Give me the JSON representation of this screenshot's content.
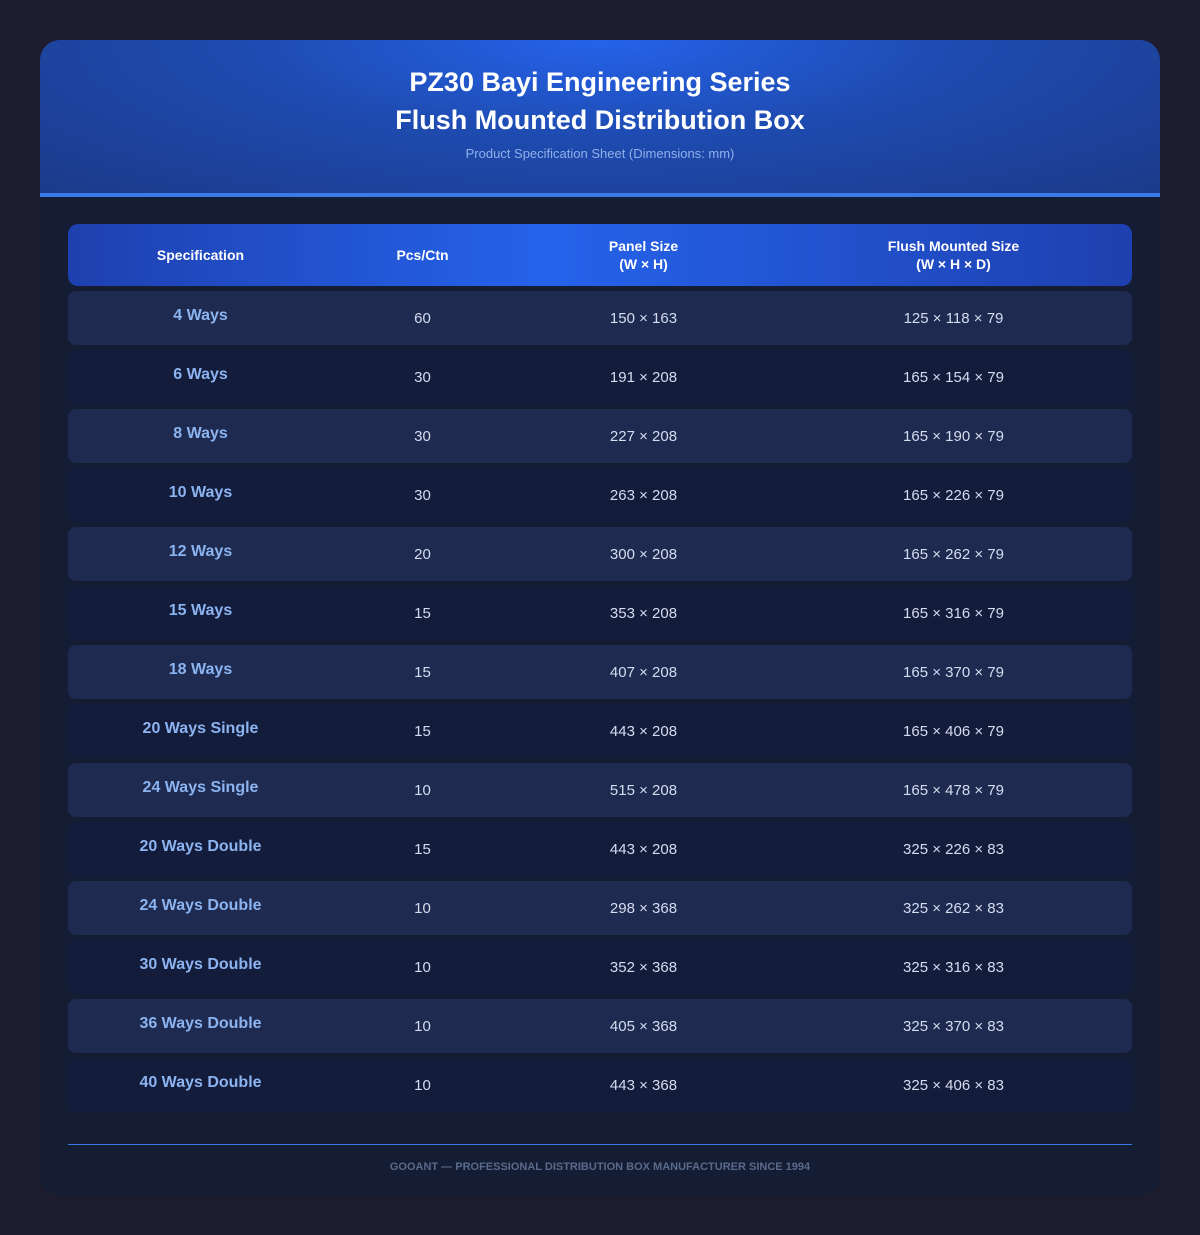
{
  "header": {
    "title_line1": "PZ30 Bayi Engineering Series",
    "title_line2": "Flush Mounted Distribution Box",
    "subtitle": "Product Specification Sheet (Dimensions: mm)"
  },
  "table": {
    "columns": [
      "Specification",
      "Pcs/Ctn",
      "Panel Size\n(W × H)",
      "Flush Mounted Size\n(W × H × D)"
    ],
    "rows": [
      [
        "4 Ways",
        60,
        "150 × 163",
        "125 × 118 × 79"
      ],
      [
        "6 Ways",
        30,
        "191 × 208",
        "165 × 154 × 79"
      ],
      [
        "8 Ways",
        30,
        "227 × 208",
        "165 × 190 × 79"
      ],
      [
        "10 Ways",
        30,
        "263 × 208",
        "165 × 226 × 79"
      ],
      [
        "12 Ways",
        20,
        "300 × 208",
        "165 × 262 × 79"
      ],
      [
        "15 Ways",
        15,
        "353 × 208",
        "165 × 316 × 79"
      ],
      [
        "18 Ways",
        15,
        "407 × 208",
        "165 × 370 × 79"
      ],
      [
        "20 Ways Single",
        15,
        "443 × 208",
        "165 × 406 × 79"
      ],
      [
        "24 Ways Single",
        10,
        "515 × 208",
        "165 × 478 × 79"
      ],
      [
        "20 Ways Double",
        15,
        "443 × 208",
        "325 × 226 × 83"
      ],
      [
        "24 Ways Double",
        10,
        "298 × 368",
        "325 × 262 × 83"
      ],
      [
        "30 Ways Double",
        10,
        "352 × 368",
        "325 × 316 × 83"
      ],
      [
        "36 Ways Double",
        10,
        "405 × 368",
        "325 × 370 × 83"
      ],
      [
        "40 Ways Double",
        10,
        "443 × 368",
        "325 × 406 × 83"
      ]
    ]
  },
  "footer": {
    "text": "GOOANT — PROFESSIONAL DISTRIBUTION BOX MANUFACTURER SINCE 1994"
  }
}
